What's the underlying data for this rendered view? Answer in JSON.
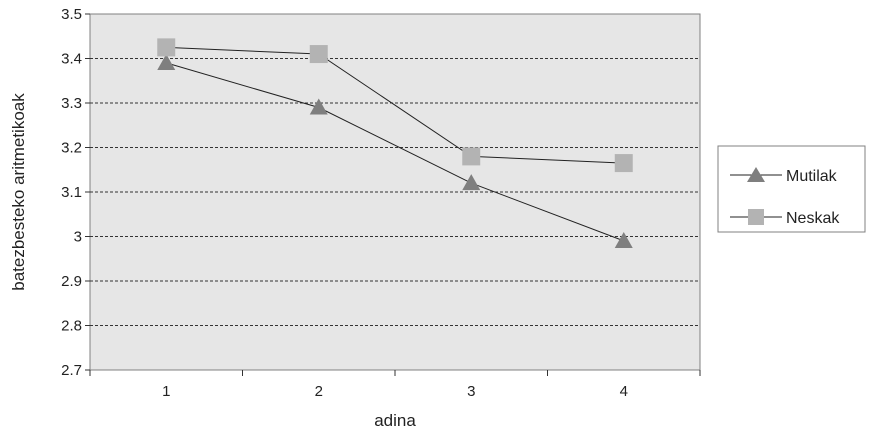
{
  "chart_data": {
    "type": "line",
    "title": "",
    "xlabel": "adina",
    "ylabel": "batezbesteko aritmetikoak",
    "x": [
      1,
      2,
      3,
      4
    ],
    "xticks": [
      "1",
      "2",
      "3",
      "4"
    ],
    "ylim": [
      2.7,
      3.5
    ],
    "yticks": [
      "2.7",
      "2.8",
      "2.9",
      "3",
      "3.1",
      "3.2",
      "3.3",
      "3.4",
      "3.5"
    ],
    "grid": "horizontal dashed",
    "legend": "right",
    "plot_background": "#e6e6e6",
    "series": [
      {
        "name": "Mutilak",
        "marker": "triangle",
        "color": "#7f7f7f",
        "values": [
          3.39,
          3.29,
          3.12,
          2.99
        ]
      },
      {
        "name": "Neskak",
        "marker": "square",
        "color": "#b3b3b3",
        "values": [
          3.425,
          3.41,
          3.18,
          3.165
        ]
      }
    ]
  }
}
